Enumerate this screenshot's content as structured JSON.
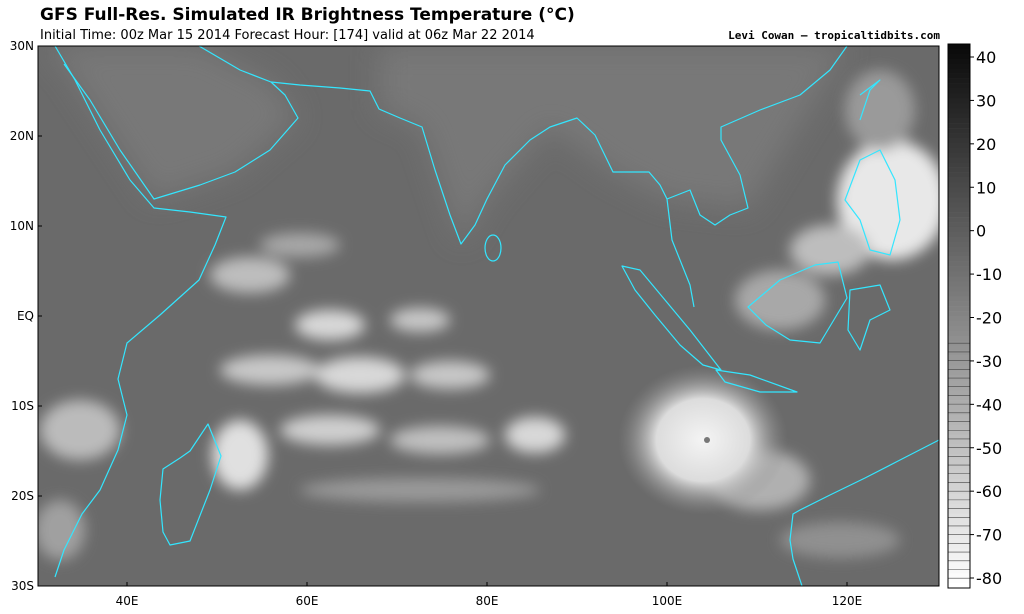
{
  "header": {
    "title": "GFS Full-Res. Simulated IR Brightness Temperature (°C)",
    "subtitle": "Initial Time: 00z Mar 15 2014 Forecast Hour: [174] valid at 06z Mar 22 2014",
    "credit": "Levi Cowan – tropicaltidbits.com"
  },
  "map": {
    "lat_labels": [
      "30N",
      "20N",
      "10N",
      "EQ",
      "10S",
      "20S",
      "30S"
    ],
    "lon_labels": [
      "40E",
      "60E",
      "80E",
      "100E",
      "120E"
    ]
  },
  "colorbar": {
    "ticks": [
      40,
      30,
      20,
      10,
      0,
      -10,
      -20,
      -30,
      -40,
      -50,
      -60,
      -70,
      -80
    ]
  }
}
